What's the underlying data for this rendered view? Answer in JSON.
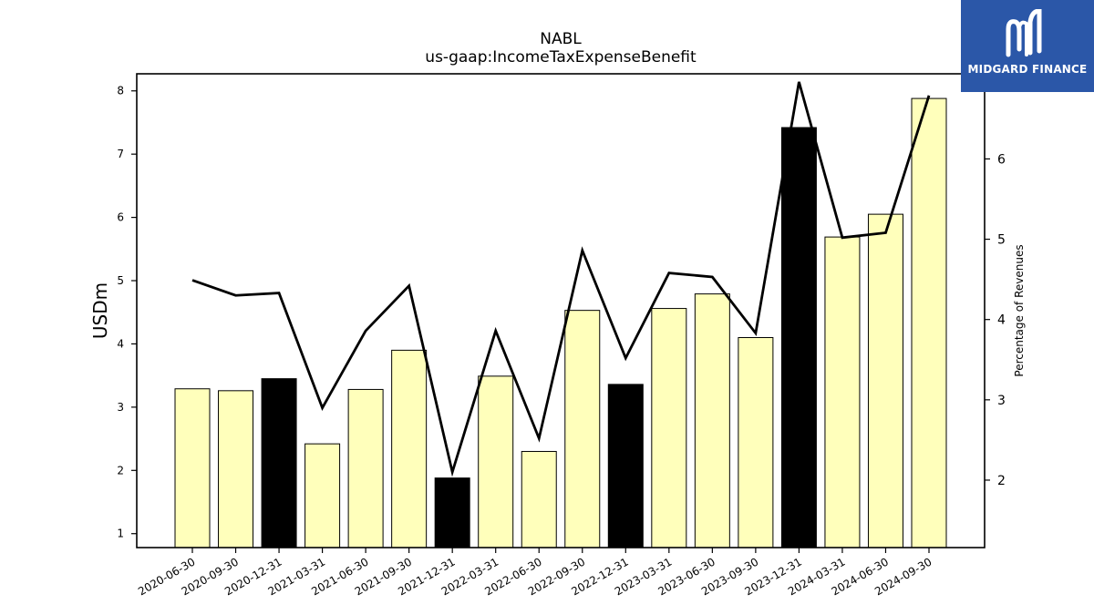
{
  "chart_data": {
    "type": "bar",
    "title": "NABL",
    "subtitle": "us-gaap:IncomeTaxExpenseBenefit",
    "ylabel": "USDm",
    "y2label": "Percentage of Revenues",
    "ylim": [
      0.78,
      8.27
    ],
    "y2lim": [
      1.16,
      7.06
    ],
    "yticks": [
      1,
      2,
      3,
      4,
      5,
      6,
      7,
      8
    ],
    "y2ticks": [
      2,
      3,
      4,
      5,
      6
    ],
    "categories": [
      "2020-06-30",
      "2020-09-30",
      "2020-12-31",
      "2021-03-31",
      "2021-06-30",
      "2021-09-30",
      "2021-12-31",
      "2022-03-31",
      "2022-06-30",
      "2022-09-30",
      "2022-12-31",
      "2023-03-31",
      "2023-06-30",
      "2023-09-30",
      "2023-12-31",
      "2024-03-31",
      "2024-06-30",
      "2024-09-30"
    ],
    "series": [
      {
        "type": "bar",
        "axis": "left",
        "values": [
          3.29,
          3.26,
          3.45,
          2.42,
          3.28,
          3.9,
          1.88,
          3.49,
          2.3,
          4.53,
          3.36,
          4.56,
          4.79,
          4.1,
          7.42,
          5.69,
          6.05,
          7.88
        ],
        "colors": [
          "#ffffbb",
          "#ffffbb",
          "#000000",
          "#ffffbb",
          "#ffffbb",
          "#ffffbb",
          "#000000",
          "#ffffbb",
          "#ffffbb",
          "#ffffbb",
          "#000000",
          "#ffffbb",
          "#ffffbb",
          "#ffffbb",
          "#000000",
          "#ffffbb",
          "#ffffbb",
          "#ffffbb"
        ]
      },
      {
        "type": "line",
        "axis": "right",
        "color": "#000000",
        "values": [
          4.49,
          4.3,
          4.33,
          2.9,
          3.86,
          4.42,
          2.1,
          3.86,
          2.52,
          4.86,
          3.52,
          4.58,
          4.53,
          3.83,
          6.96,
          5.02,
          5.08,
          6.79
        ]
      }
    ],
    "grid": false
  },
  "logo": {
    "text": "MIDGARD FINANCE",
    "icon": "midgard-m-icon",
    "bg_color": "#2b57a8"
  }
}
